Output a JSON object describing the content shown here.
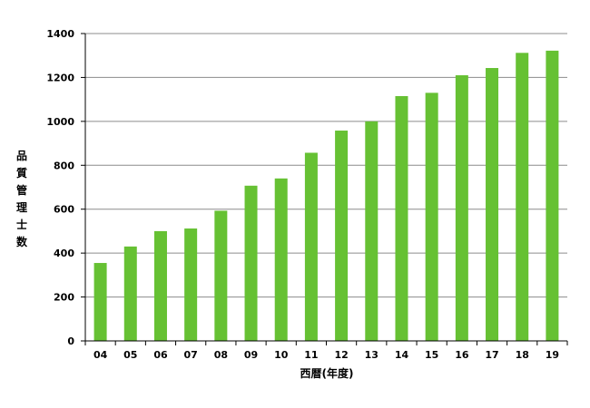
{
  "chart_data": {
    "type": "bar",
    "categories": [
      "04",
      "05",
      "06",
      "07",
      "08",
      "09",
      "10",
      "11",
      "12",
      "13",
      "14",
      "15",
      "16",
      "17",
      "18",
      "19"
    ],
    "series": [
      {
        "values": [
          355,
          430,
          500,
          512,
          593,
          707,
          740,
          857,
          958,
          1000,
          1115,
          1130,
          1210,
          1243,
          1312,
          1322
        ]
      }
    ],
    "xlabel": "西暦(年度)",
    "ylabel": "品質管理士数",
    "ylim": [
      0,
      1400
    ],
    "yticks": [
      0,
      200,
      400,
      600,
      800,
      1000,
      1200,
      1400
    ],
    "grid": true,
    "legend": "none",
    "colors": {
      "bar": "#66c133",
      "grid": "#8c8c8c",
      "axis": "#000000"
    }
  }
}
